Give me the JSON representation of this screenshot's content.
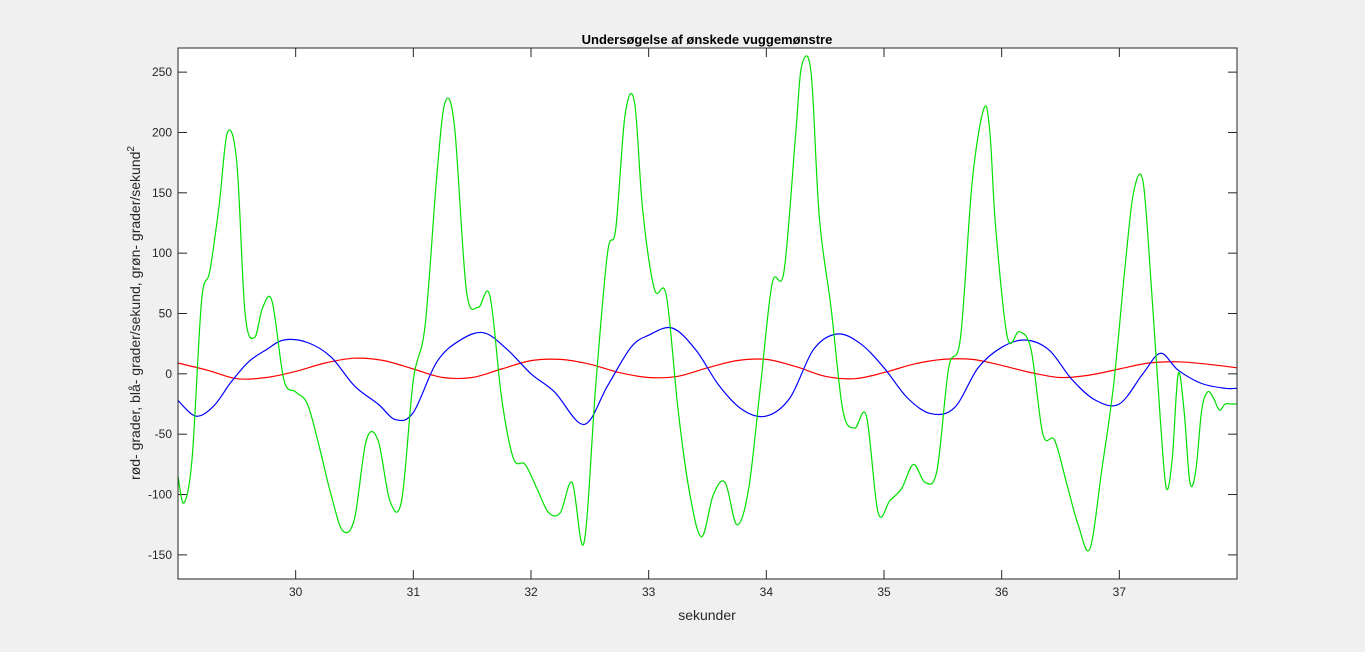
{
  "chart_data": {
    "type": "line",
    "title": "Undersøgelse af ønskede vuggemønstre",
    "xlabel": "sekunder",
    "ylabel": "rød- grader, blå- grader/sekund, grøn- grader/sekund",
    "ylabel_superscript": "2",
    "xlim": [
      29.0,
      38.0
    ],
    "ylim": [
      -170,
      270
    ],
    "xticks": [
      30,
      31,
      32,
      33,
      34,
      35,
      36,
      37
    ],
    "yticks": [
      -150,
      -100,
      -50,
      0,
      50,
      100,
      150,
      200,
      250
    ],
    "grid": false,
    "legend": "none",
    "series": [
      {
        "color": "#ff0000",
        "x": [
          29.0,
          29.25,
          29.5,
          29.75,
          30.0,
          30.25,
          30.5,
          30.75,
          31.0,
          31.25,
          31.5,
          31.75,
          32.0,
          32.25,
          32.5,
          32.75,
          33.0,
          33.25,
          33.5,
          33.75,
          34.0,
          34.25,
          34.5,
          34.75,
          35.0,
          35.25,
          35.5,
          35.75,
          36.0,
          36.25,
          36.5,
          36.75,
          37.0,
          37.25,
          37.5,
          37.75,
          38.0
        ],
        "values": [
          9,
          3,
          -4,
          -3,
          2,
          9,
          13,
          11,
          4,
          -3,
          -3,
          4,
          11,
          12,
          8,
          1,
          -3,
          -2,
          5,
          11,
          12,
          6,
          -2,
          -4,
          1,
          8,
          12,
          12,
          7,
          1,
          -3,
          -1,
          4,
          9,
          10,
          8,
          5
        ]
      },
      {
        "color": "#0000ff",
        "x": [
          29.0,
          29.15,
          29.3,
          29.45,
          29.6,
          29.75,
          29.9,
          30.1,
          30.3,
          30.5,
          30.7,
          30.85,
          31.0,
          31.2,
          31.4,
          31.6,
          31.8,
          32.0,
          32.2,
          32.45,
          32.65,
          32.85,
          33.0,
          33.2,
          33.4,
          33.6,
          33.8,
          34.0,
          34.2,
          34.4,
          34.6,
          34.8,
          35.0,
          35.2,
          35.4,
          35.6,
          35.8,
          36.0,
          36.2,
          36.4,
          36.6,
          36.8,
          37.0,
          37.2,
          37.35,
          37.5,
          37.7,
          37.9,
          38.0
        ],
        "values": [
          -22,
          -35,
          -27,
          -7,
          10,
          20,
          28,
          26,
          14,
          -10,
          -25,
          -38,
          -32,
          10,
          28,
          34,
          20,
          0,
          -15,
          -42,
          -10,
          22,
          32,
          38,
          20,
          -10,
          -30,
          -35,
          -20,
          20,
          33,
          25,
          5,
          -20,
          -33,
          -28,
          5,
          22,
          28,
          20,
          -5,
          -22,
          -25,
          0,
          17,
          3,
          -8,
          -12,
          -12
        ]
      },
      {
        "color": "#00e000",
        "x": [
          29.0,
          29.05,
          29.12,
          29.2,
          29.27,
          29.35,
          29.42,
          29.5,
          29.57,
          29.65,
          29.72,
          29.8,
          29.9,
          30.0,
          30.1,
          30.2,
          30.3,
          30.4,
          30.5,
          30.6,
          30.7,
          30.8,
          30.9,
          31.0,
          31.1,
          31.2,
          31.27,
          31.35,
          31.45,
          31.55,
          31.65,
          31.75,
          31.85,
          31.95,
          32.05,
          32.15,
          32.25,
          32.35,
          32.45,
          32.55,
          32.65,
          32.72,
          32.8,
          32.88,
          32.95,
          33.05,
          33.15,
          33.25,
          33.35,
          33.45,
          33.55,
          33.65,
          33.75,
          33.85,
          33.95,
          34.05,
          34.15,
          34.25,
          34.3,
          34.38,
          34.45,
          34.55,
          34.65,
          34.75,
          34.85,
          34.95,
          35.05,
          35.15,
          35.25,
          35.35,
          35.45,
          35.55,
          35.65,
          35.75,
          35.85,
          35.9,
          35.95,
          36.05,
          36.15,
          36.25,
          36.35,
          36.45,
          36.55,
          36.65,
          36.75,
          36.85,
          36.95,
          37.05,
          37.12,
          37.2,
          37.27,
          37.35,
          37.4,
          37.45,
          37.5,
          37.55,
          37.6,
          37.65,
          37.7,
          37.75,
          37.8,
          37.85,
          37.9,
          37.95,
          38.0
        ],
        "values": [
          -85,
          -107,
          -70,
          60,
          85,
          140,
          200,
          175,
          50,
          30,
          55,
          60,
          -5,
          -15,
          -25,
          -60,
          -100,
          -130,
          -120,
          -55,
          -55,
          -105,
          -105,
          -5,
          40,
          165,
          225,
          205,
          70,
          55,
          65,
          -20,
          -70,
          -75,
          -95,
          -115,
          -115,
          -90,
          -140,
          -10,
          100,
          120,
          215,
          225,
          135,
          70,
          65,
          -30,
          -100,
          -135,
          -100,
          -90,
          -125,
          -95,
          -10,
          75,
          85,
          200,
          255,
          250,
          130,
          55,
          -30,
          -45,
          -35,
          -115,
          -105,
          -95,
          -75,
          -90,
          -80,
          5,
          30,
          160,
          220,
          200,
          120,
          30,
          35,
          20,
          -50,
          -55,
          -90,
          -125,
          -145,
          -80,
          -10,
          90,
          150,
          160,
          75,
          -40,
          -95,
          -70,
          0,
          -30,
          -90,
          -80,
          -30,
          -15,
          -20,
          -30,
          -25,
          -25,
          -25
        ]
      }
    ]
  }
}
